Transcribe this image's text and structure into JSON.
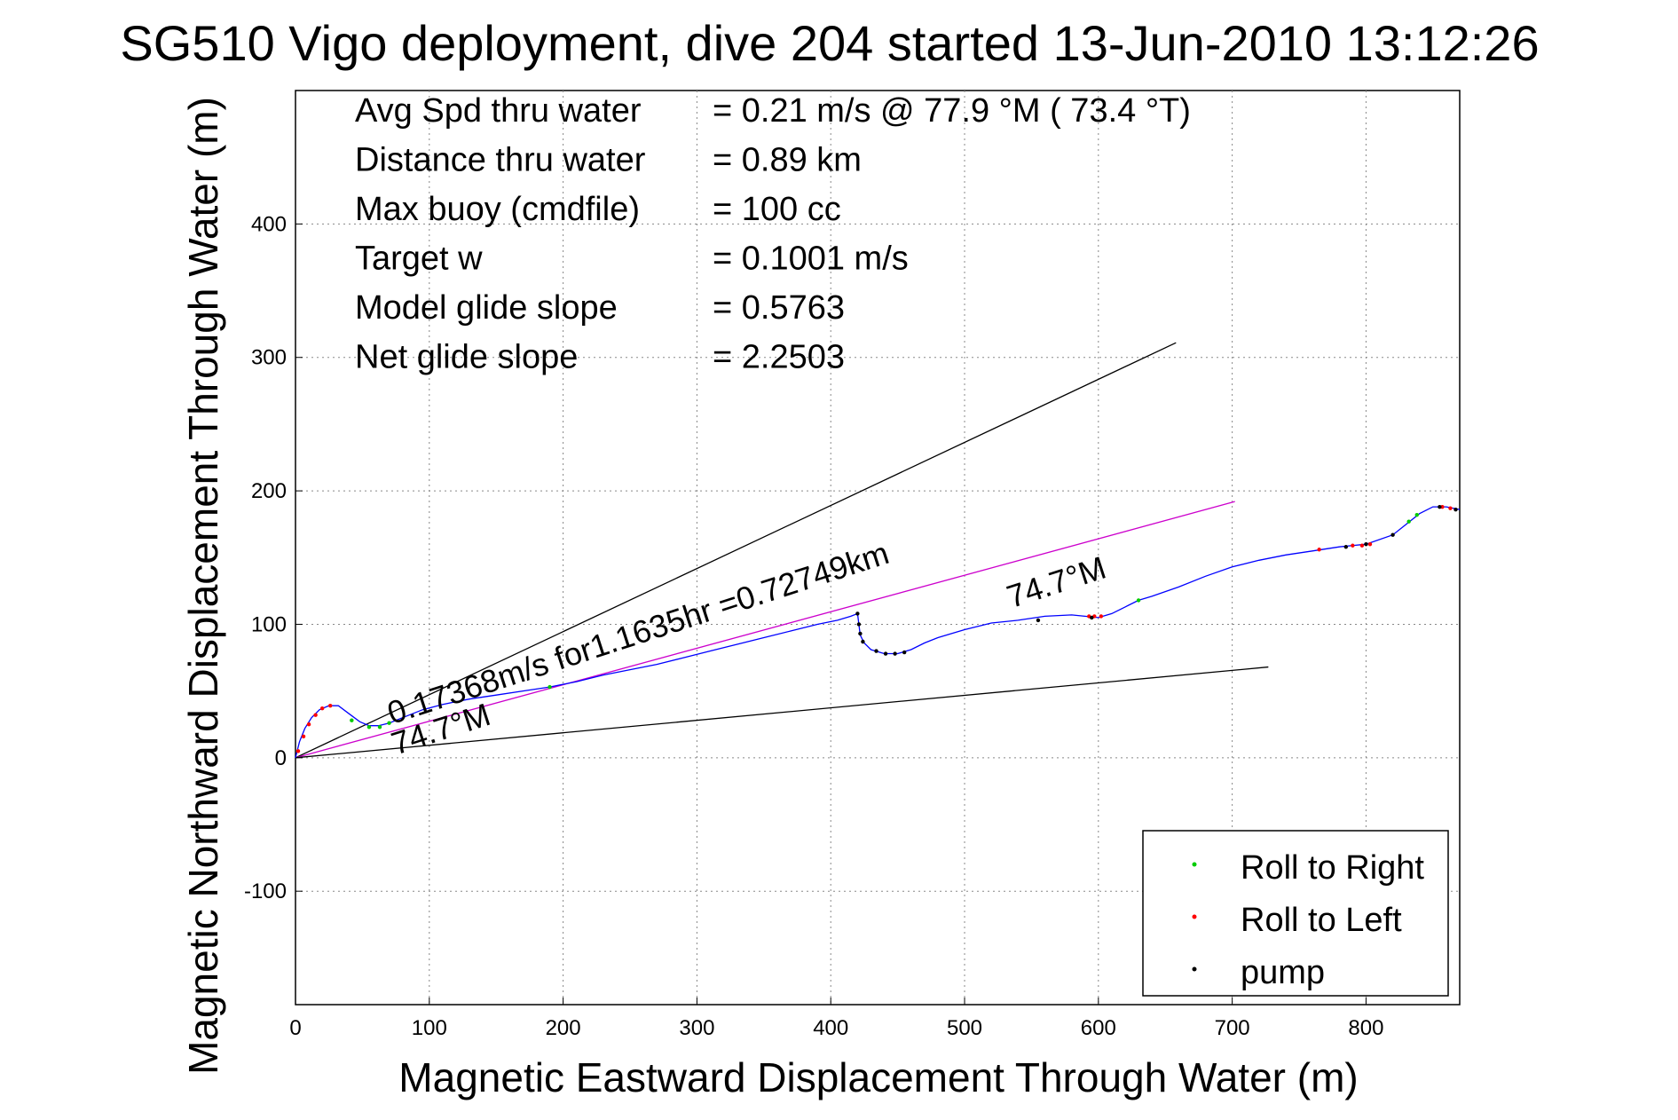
{
  "chart_data": {
    "type": "line",
    "title": "SG510 Vigo deployment, dive 204 started 13-Jun-2010 13:12:26",
    "xlabel": "Magnetic Eastward Displacement Through Water (m)",
    "ylabel": "Magnetic Northward Displacement Through Water (m)",
    "xlim": [
      0,
      870
    ],
    "ylim": [
      -185,
      500
    ],
    "x_ticks": [
      0,
      100,
      200,
      300,
      400,
      500,
      600,
      700,
      800
    ],
    "y_ticks": [
      -100,
      0,
      100,
      200,
      300,
      400
    ],
    "grid": true,
    "legend_position": "bottom-right",
    "stats": [
      {
        "label": "Avg Spd thru water",
        "value": "=  0.21 m/s @  77.9 °M ( 73.4 °T)"
      },
      {
        "label": "Distance thru water",
        "value": "=  0.89 km"
      },
      {
        "label": "Max buoy (cmdfile)",
        "value": "= 100 cc"
      },
      {
        "label": "Target w",
        "value": "= 0.1001 m/s"
      },
      {
        "label": "Model glide slope",
        "value": "= 0.5763"
      },
      {
        "label": "Net glide slope",
        "value": "= 2.2503"
      }
    ],
    "annotations": [
      {
        "text": "0.17368m/s for1.1635hr =0.72749km",
        "x": 72,
        "y": 25,
        "rotate": -18
      },
      {
        "text": "74.7°M",
        "x": 75,
        "y": 2,
        "rotate": -18
      },
      {
        "text": "74.7°M",
        "x": 535,
        "y": 112,
        "rotate": -18
      }
    ],
    "reference_lines": [
      {
        "name": "upper",
        "color": "#000000",
        "x": [
          0,
          658
        ],
        "y": [
          0,
          311
        ]
      },
      {
        "name": "heading",
        "color": "#cc00cc",
        "x": [
          0,
          702
        ],
        "y": [
          0,
          192
        ]
      },
      {
        "name": "lower",
        "color": "#000000",
        "x": [
          0,
          727
        ],
        "y": [
          0,
          68
        ]
      }
    ],
    "track": {
      "color": "#0000ff",
      "x": [
        0,
        3,
        7,
        12,
        18,
        25,
        32,
        40,
        48,
        55,
        62,
        70,
        80,
        95,
        110,
        130,
        150,
        170,
        190,
        210,
        230,
        250,
        270,
        290,
        310,
        330,
        350,
        370,
        390,
        405,
        415,
        420,
        421,
        422,
        425,
        430,
        440,
        450,
        460,
        470,
        480,
        490,
        500,
        520,
        540,
        560,
        580,
        590,
        600,
        610,
        620,
        630,
        640,
        660,
        680,
        700,
        720,
        740,
        760,
        780,
        800,
        820,
        830,
        840,
        850,
        860,
        870
      ],
      "y": [
        0,
        12,
        22,
        30,
        36,
        39,
        39,
        33,
        27,
        24,
        24,
        26,
        30,
        36,
        40,
        44,
        47,
        50,
        53,
        57,
        62,
        66,
        70,
        75,
        80,
        85,
        90,
        95,
        100,
        103,
        106,
        108,
        100,
        92,
        86,
        81,
        78,
        78,
        81,
        86,
        90,
        93,
        96,
        101,
        103,
        106,
        107,
        106,
        105,
        108,
        113,
        118,
        121,
        128,
        136,
        143,
        148,
        152,
        155,
        158,
        160,
        167,
        175,
        183,
        188,
        188,
        186
      ]
    },
    "markers": {
      "roll_right": {
        "color": "#00cc00",
        "points": [
          [
            42,
            28
          ],
          [
            55,
            23
          ],
          [
            63,
            23
          ],
          [
            70,
            26
          ],
          [
            190,
            53
          ],
          [
            630,
            118
          ],
          [
            832,
            177
          ],
          [
            838,
            182
          ]
        ]
      },
      "roll_left": {
        "color": "#ff0000",
        "points": [
          [
            2,
            5
          ],
          [
            6,
            16
          ],
          [
            10,
            25
          ],
          [
            15,
            32
          ],
          [
            20,
            37
          ],
          [
            26,
            39
          ],
          [
            593,
            106
          ],
          [
            597,
            106
          ],
          [
            602,
            106
          ],
          [
            765,
            156
          ],
          [
            790,
            159
          ],
          [
            797,
            159
          ],
          [
            803,
            160
          ],
          [
            857,
            188
          ],
          [
            863,
            187
          ]
        ]
      },
      "pump": {
        "color": "#000000",
        "points": [
          [
            420,
            108
          ],
          [
            421,
            100
          ],
          [
            422,
            93
          ],
          [
            424,
            87
          ],
          [
            434,
            80
          ],
          [
            441,
            78
          ],
          [
            448,
            78
          ],
          [
            455,
            79
          ],
          [
            555,
            103
          ],
          [
            595,
            105
          ],
          [
            785,
            158
          ],
          [
            800,
            160
          ],
          [
            820,
            167
          ],
          [
            855,
            188
          ],
          [
            867,
            186
          ]
        ]
      }
    }
  },
  "legend": [
    {
      "label": "Roll to Right",
      "color": "#00cc00"
    },
    {
      "label": "Roll to Left",
      "color": "#ff0000"
    },
    {
      "label": "pump",
      "color": "#000000"
    }
  ]
}
